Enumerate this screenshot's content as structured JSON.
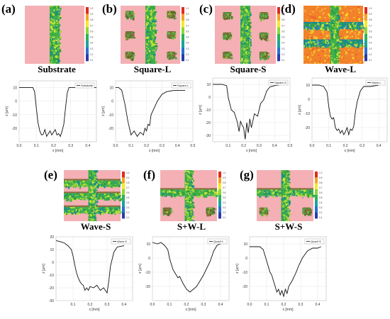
{
  "panels": [
    {
      "letter": "(a)",
      "name": "Substrate",
      "legend": "Substrate",
      "pattern": "substrate",
      "yticks": [
        "10",
        "0",
        "-10",
        "-20"
      ],
      "xticks": [
        "0.0",
        "0.1",
        "0.2",
        "0.3",
        "0.4"
      ],
      "xmax": 0.45,
      "ylim": [
        -30,
        15
      ],
      "profile": [
        [
          0.0,
          10
        ],
        [
          0.04,
          10
        ],
        [
          0.08,
          10
        ],
        [
          0.09,
          7
        ],
        [
          0.1,
          -5
        ],
        [
          0.11,
          -16
        ],
        [
          0.12,
          -22
        ],
        [
          0.13,
          -25
        ],
        [
          0.14,
          -24.5
        ],
        [
          0.15,
          -21
        ],
        [
          0.16,
          -26
        ],
        [
          0.17,
          -24
        ],
        [
          0.18,
          -22
        ],
        [
          0.19,
          -25
        ],
        [
          0.2,
          -23
        ],
        [
          0.21,
          -21
        ],
        [
          0.22,
          -25
        ],
        [
          0.23,
          -24
        ],
        [
          0.24,
          -26
        ],
        [
          0.25,
          -22
        ],
        [
          0.26,
          -17
        ],
        [
          0.27,
          -5
        ],
        [
          0.28,
          6
        ],
        [
          0.29,
          10
        ],
        [
          0.35,
          10
        ],
        [
          0.45,
          10
        ]
      ]
    },
    {
      "letter": "(b)",
      "name": "Square-L",
      "legend": "Square-L",
      "pattern": "square",
      "yticks": [
        "10",
        "0",
        "-10",
        "-20"
      ],
      "xticks": [
        "0.0",
        "0.1",
        "0.2",
        "0.3",
        "0.4",
        "0.5"
      ],
      "xmax": 0.5,
      "ylim": [
        -30,
        15
      ],
      "profile": [
        [
          0.0,
          10
        ],
        [
          0.02,
          10
        ],
        [
          0.04,
          8
        ],
        [
          0.06,
          -2
        ],
        [
          0.08,
          -15
        ],
        [
          0.09,
          -20
        ],
        [
          0.1,
          -25
        ],
        [
          0.12,
          -22
        ],
        [
          0.14,
          -26
        ],
        [
          0.16,
          -23
        ],
        [
          0.18,
          -25
        ],
        [
          0.19,
          -20
        ],
        [
          0.2,
          -22
        ],
        [
          0.21,
          -17
        ],
        [
          0.22,
          -18
        ],
        [
          0.23,
          -10
        ],
        [
          0.25,
          -5
        ],
        [
          0.27,
          0
        ],
        [
          0.3,
          5
        ],
        [
          0.33,
          7
        ],
        [
          0.38,
          8
        ],
        [
          0.45,
          8
        ]
      ]
    },
    {
      "letter": "(c)",
      "name": "Square-S",
      "legend": "Square-S",
      "pattern": "square-s",
      "yticks": [
        "10",
        "0",
        "-10",
        "-20",
        "-30"
      ],
      "xticks": [
        "0.1",
        "0.2",
        "0.3",
        "0.4",
        "0.5"
      ],
      "xmax": 0.5,
      "ylim": [
        -35,
        15
      ],
      "profile": [
        [
          0.0,
          10
        ],
        [
          0.06,
          10
        ],
        [
          0.09,
          9
        ],
        [
          0.1,
          0
        ],
        [
          0.12,
          -10
        ],
        [
          0.14,
          -12
        ],
        [
          0.16,
          -20
        ],
        [
          0.17,
          -27
        ],
        [
          0.18,
          -19
        ],
        [
          0.19,
          -22
        ],
        [
          0.2,
          -24
        ],
        [
          0.21,
          -33
        ],
        [
          0.22,
          -20
        ],
        [
          0.23,
          -28
        ],
        [
          0.24,
          -17
        ],
        [
          0.25,
          -24
        ],
        [
          0.27,
          -13
        ],
        [
          0.29,
          -15
        ],
        [
          0.31,
          -5
        ],
        [
          0.33,
          -2
        ],
        [
          0.35,
          5
        ],
        [
          0.37,
          8
        ],
        [
          0.4,
          9
        ],
        [
          0.45,
          10
        ]
      ]
    },
    {
      "letter": "(d)",
      "name": "Wave-L",
      "legend": "Wave-L",
      "pattern": "wave",
      "yticks": [
        "10",
        "0",
        "-10",
        "-20"
      ],
      "xticks": [
        "0.0",
        "0.1",
        "0.2",
        "0.3",
        "0.4"
      ],
      "xmax": 0.45,
      "ylim": [
        -30,
        15
      ],
      "profile": [
        [
          0.0,
          10
        ],
        [
          0.04,
          10
        ],
        [
          0.07,
          9
        ],
        [
          0.09,
          5
        ],
        [
          0.1,
          -5
        ],
        [
          0.11,
          -12
        ],
        [
          0.12,
          -14
        ],
        [
          0.13,
          -13
        ],
        [
          0.14,
          -20
        ],
        [
          0.15,
          -22
        ],
        [
          0.16,
          -21
        ],
        [
          0.17,
          -24
        ],
        [
          0.18,
          -22
        ],
        [
          0.19,
          -25
        ],
        [
          0.2,
          -23
        ],
        [
          0.21,
          -20
        ],
        [
          0.22,
          -25
        ],
        [
          0.23,
          -21
        ],
        [
          0.24,
          -22
        ],
        [
          0.25,
          -19
        ],
        [
          0.26,
          -9
        ],
        [
          0.27,
          -2
        ],
        [
          0.29,
          6
        ],
        [
          0.31,
          9
        ],
        [
          0.35,
          9
        ],
        [
          0.4,
          10
        ]
      ]
    },
    {
      "letter": "(e)",
      "name": "Wave-S",
      "legend": "Wave-S",
      "pattern": "wave-s",
      "yticks": [
        "20",
        "10",
        "0",
        "-10",
        "-20",
        "-30"
      ],
      "xticks": [
        "0.1",
        "0.2",
        "0.3",
        "0.4"
      ],
      "xmax": 0.45,
      "ylim": [
        -30,
        20
      ],
      "profile": [
        [
          0.0,
          17
        ],
        [
          0.03,
          16
        ],
        [
          0.05,
          15
        ],
        [
          0.07,
          13
        ],
        [
          0.09,
          10
        ],
        [
          0.1,
          5
        ],
        [
          0.11,
          -2
        ],
        [
          0.12,
          -8
        ],
        [
          0.13,
          -12
        ],
        [
          0.14,
          -15
        ],
        [
          0.15,
          -17
        ],
        [
          0.16,
          -18
        ],
        [
          0.17,
          -22
        ],
        [
          0.18,
          -20
        ],
        [
          0.19,
          -22
        ],
        [
          0.2,
          -19
        ],
        [
          0.22,
          -20
        ],
        [
          0.24,
          -18
        ],
        [
          0.26,
          -22
        ],
        [
          0.28,
          -20
        ],
        [
          0.3,
          -24
        ],
        [
          0.31,
          -15
        ],
        [
          0.32,
          -3
        ],
        [
          0.34,
          8
        ],
        [
          0.36,
          12
        ],
        [
          0.4,
          13
        ]
      ]
    },
    {
      "letter": "(f)",
      "name": "S+W-L",
      "legend": "Quad+L",
      "pattern": "sw",
      "yticks": [
        "10",
        "0",
        "-10",
        "-20"
      ],
      "xticks": [
        "0.0",
        "0.1",
        "0.2",
        "0.3",
        "0.4"
      ],
      "xmax": 0.45,
      "ylim": [
        -30,
        15
      ],
      "profile": [
        [
          0.0,
          11
        ],
        [
          0.03,
          10
        ],
        [
          0.05,
          11
        ],
        [
          0.07,
          9
        ],
        [
          0.09,
          6
        ],
        [
          0.1,
          0
        ],
        [
          0.12,
          -8
        ],
        [
          0.14,
          -12
        ],
        [
          0.15,
          -14
        ],
        [
          0.16,
          -13
        ],
        [
          0.18,
          -18
        ],
        [
          0.2,
          -22
        ],
        [
          0.22,
          -24
        ],
        [
          0.24,
          -22
        ],
        [
          0.26,
          -20
        ],
        [
          0.28,
          -16
        ],
        [
          0.3,
          -12
        ],
        [
          0.32,
          -7
        ],
        [
          0.34,
          -2
        ],
        [
          0.36,
          5
        ],
        [
          0.38,
          9
        ],
        [
          0.4,
          10
        ],
        [
          0.43,
          11
        ]
      ]
    },
    {
      "letter": "(g)",
      "name": "S+W-S",
      "legend": "Quad+S",
      "pattern": "sw-s",
      "yticks": [
        "10",
        "0",
        "-10",
        "-20"
      ],
      "xticks": [
        "0.0",
        "0.1",
        "0.2",
        "0.3",
        "0.4"
      ],
      "xmax": 0.45,
      "ylim": [
        -30,
        15
      ],
      "profile": [
        [
          0.0,
          8
        ],
        [
          0.03,
          8
        ],
        [
          0.06,
          8
        ],
        [
          0.08,
          6
        ],
        [
          0.1,
          -2
        ],
        [
          0.12,
          -10
        ],
        [
          0.13,
          -12
        ],
        [
          0.14,
          -16
        ],
        [
          0.15,
          -20
        ],
        [
          0.16,
          -24
        ],
        [
          0.17,
          -22
        ],
        [
          0.18,
          -26
        ],
        [
          0.19,
          -23
        ],
        [
          0.2,
          -27
        ],
        [
          0.21,
          -22
        ],
        [
          0.22,
          -25
        ],
        [
          0.23,
          -20
        ],
        [
          0.25,
          -16
        ],
        [
          0.27,
          -11
        ],
        [
          0.29,
          -5
        ],
        [
          0.31,
          0
        ],
        [
          0.34,
          5
        ],
        [
          0.37,
          7
        ],
        [
          0.4,
          7
        ],
        [
          0.42,
          8
        ]
      ]
    }
  ],
  "colorbar": {
    "ticks": [
      "1.0",
      "0.9",
      "0.8",
      "0.7",
      "0.6",
      "0.5",
      "0.4",
      "0.3",
      "0.2",
      "0.1"
    ]
  },
  "axis": {
    "xlabel": "x [mm]",
    "ylabel": "z [μm]"
  },
  "colors": {
    "pink": "#f4b0b4",
    "green": "#3fb14a",
    "lime": "#9ed83b",
    "teal": "#1b8b8e",
    "orange": "#f2822a",
    "yellow": "#f6d82a",
    "brown": "#8a6b3e"
  }
}
